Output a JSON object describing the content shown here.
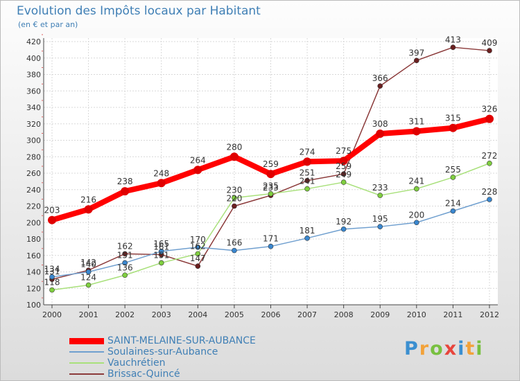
{
  "title": "Evolution des Impôts locaux par Habitant",
  "subtitle": "(en € et par an)",
  "logo": {
    "text": "Proxiti",
    "letters": [
      {
        "ch": "P",
        "color": "#3b8fd0"
      },
      {
        "ch": "r",
        "color": "#f2a23a"
      },
      {
        "ch": "o",
        "color": "#78c040"
      },
      {
        "ch": "x",
        "color": "#e8453c"
      },
      {
        "ch": "i",
        "color": "#3b8fd0"
      },
      {
        "ch": "t",
        "color": "#f2a23a"
      },
      {
        "ch": "i",
        "color": "#78c040"
      }
    ]
  },
  "chart_data": {
    "type": "line",
    "title": "Evolution des Impôts locaux par Habitant",
    "subtitle": "(en € et par an)",
    "xlabel": "",
    "ylabel": "",
    "x": [
      "2000",
      "2001",
      "2002",
      "2003",
      "2004",
      "2005",
      "2006",
      "2007",
      "2008",
      "2009",
      "2010",
      "2011",
      "2012"
    ],
    "ylim": [
      100,
      420
    ],
    "yticks": [
      100,
      120,
      140,
      160,
      180,
      200,
      220,
      240,
      260,
      280,
      300,
      320,
      340,
      360,
      380,
      400,
      420
    ],
    "grid": true,
    "legend_position": "bottom-left",
    "series": [
      {
        "name": "SAINT-MELAINE-SUR-AUBANCE",
        "color": "#ff0000",
        "marker": "#e00000",
        "width": 8,
        "r": 6,
        "values": [
          203,
          216,
          238,
          248,
          264,
          280,
          259,
          274,
          275,
          308,
          311,
          315,
          326
        ]
      },
      {
        "name": "Soulaines-sur-Aubance",
        "color": "#6f9fcf",
        "marker": "#3a87cf",
        "width": 1.5,
        "r": 3.5,
        "values": [
          134,
          140,
          151,
          165,
          170,
          166,
          171,
          181,
          192,
          195,
          200,
          214,
          228
        ]
      },
      {
        "name": "Vauchrétien",
        "color": "#a8e07a",
        "marker": "#7fcf3f",
        "width": 1.5,
        "r": 3.5,
        "values": [
          118,
          124,
          136,
          151,
          162,
          230,
          235,
          241,
          249,
          233,
          241,
          255,
          272
        ]
      },
      {
        "name": "Brissac-Quincé",
        "color": "#8b3a3a",
        "marker": "#6b1f1f",
        "width": 1.5,
        "r": 3.5,
        "values": [
          131,
          142,
          162,
          161,
          147,
          220,
          233,
          251,
          259,
          366,
          397,
          413,
          409
        ]
      }
    ]
  }
}
